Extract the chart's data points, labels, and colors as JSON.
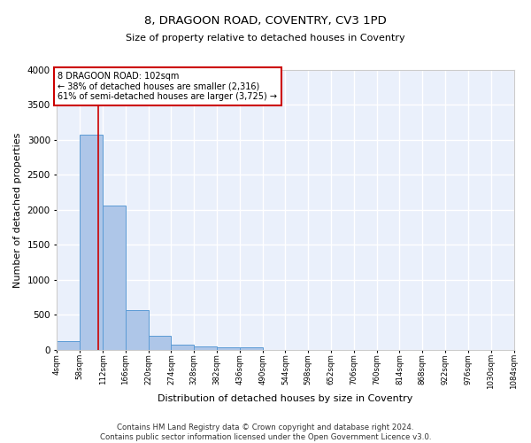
{
  "title": "8, DRAGOON ROAD, COVENTRY, CV3 1PD",
  "subtitle": "Size of property relative to detached houses in Coventry",
  "xlabel": "Distribution of detached houses by size in Coventry",
  "ylabel": "Number of detached properties",
  "bar_color": "#aec6e8",
  "bar_edge_color": "#5b9bd5",
  "background_color": "#eaf0fb",
  "grid_color": "#ffffff",
  "annotation_box_color": "#cc0000",
  "property_size": 102,
  "property_line_color": "#cc0000",
  "annotation_text": "8 DRAGOON ROAD: 102sqm\n← 38% of detached houses are smaller (2,316)\n61% of semi-detached houses are larger (3,725) →",
  "bins_start": 4,
  "bin_width": 54,
  "num_bins": 20,
  "bar_heights": [
    130,
    3070,
    2060,
    565,
    200,
    80,
    55,
    40,
    35,
    0,
    0,
    0,
    0,
    0,
    0,
    0,
    0,
    0,
    0,
    0
  ],
  "xlim_min": 4,
  "xlim_max": 1084,
  "ylim_min": 0,
  "ylim_max": 4000,
  "yticks": [
    0,
    500,
    1000,
    1500,
    2000,
    2500,
    3000,
    3500,
    4000
  ],
  "footer_text": "Contains HM Land Registry data © Crown copyright and database right 2024.\nContains public sector information licensed under the Open Government Licence v3.0.",
  "tick_labels": [
    "4sqm",
    "58sqm",
    "112sqm",
    "166sqm",
    "220sqm",
    "274sqm",
    "328sqm",
    "382sqm",
    "436sqm",
    "490sqm",
    "544sqm",
    "598sqm",
    "652sqm",
    "706sqm",
    "760sqm",
    "814sqm",
    "868sqm",
    "922sqm",
    "976sqm",
    "1030sqm",
    "1084sqm"
  ]
}
